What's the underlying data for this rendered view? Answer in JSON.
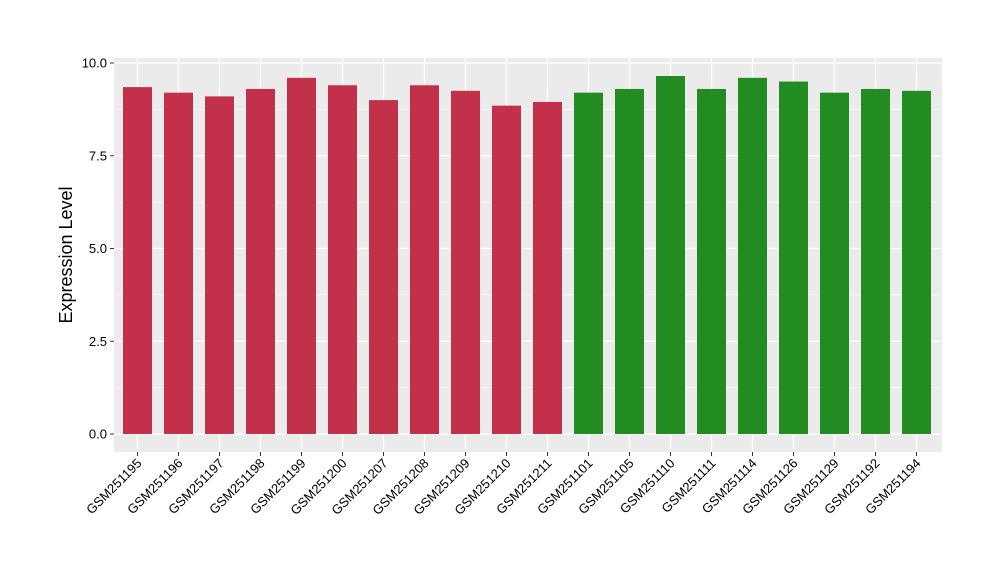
{
  "chart_data": {
    "type": "bar",
    "ylabel": "Expression Level",
    "xlabel": "",
    "ylim": [
      0,
      10
    ],
    "yticks": [
      "0.0",
      "2.5",
      "5.0",
      "7.5",
      "10.0"
    ],
    "grid": true,
    "categories": [
      "GSM251195",
      "GSM251196",
      "GSM251197",
      "GSM251198",
      "GSM251199",
      "GSM251200",
      "GSM251207",
      "GSM251208",
      "GSM251209",
      "GSM251210",
      "GSM251211",
      "GSM251101",
      "GSM251105",
      "GSM251110",
      "GSM251111",
      "GSM251114",
      "GSM251126",
      "GSM251129",
      "GSM251192",
      "GSM251194"
    ],
    "values": [
      9.35,
      9.2,
      9.1,
      9.3,
      9.6,
      9.4,
      9.0,
      9.4,
      9.25,
      8.85,
      8.95,
      9.2,
      9.3,
      9.65,
      9.3,
      9.6,
      9.5,
      9.2,
      9.3,
      9.25
    ],
    "groups": [
      "a",
      "a",
      "a",
      "a",
      "a",
      "a",
      "a",
      "a",
      "a",
      "a",
      "a",
      "b",
      "b",
      "b",
      "b",
      "b",
      "b",
      "b",
      "b",
      "b"
    ],
    "group_colors": {
      "a": "#C3304A",
      "b": "#228B22"
    },
    "panel_color": "#EBEBEB",
    "grid_color": "#FFFFFF"
  }
}
